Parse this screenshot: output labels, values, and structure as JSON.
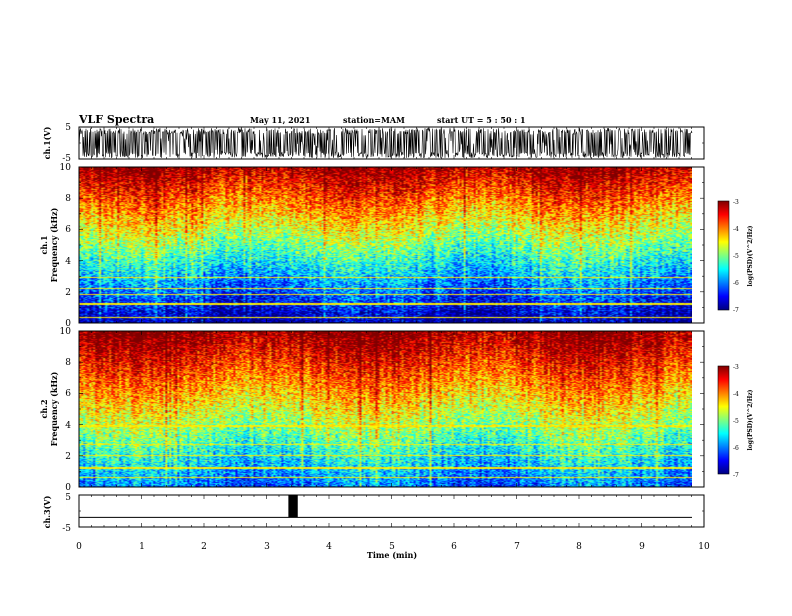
{
  "header": {
    "title": "VLF Spectra",
    "date": "May 11, 2021",
    "station": "station=MAM",
    "start_time": "start  UT =  5 : 50 : 1"
  },
  "chart_data": [
    {
      "name": "ch1-waveform",
      "type": "line",
      "ylabel": "ch.1(V)",
      "ylim": [
        -5,
        5
      ],
      "yticks": [
        "5",
        "-5"
      ],
      "xlim": [
        0,
        10
      ]
    },
    {
      "name": "ch1-spectrogram",
      "type": "heatmap",
      "ylabel_top": "ch.1",
      "ylabel": "Frequency (kHz)",
      "ylim": [
        0,
        10
      ],
      "yticks": [
        "10",
        "8",
        "6",
        "4",
        "2",
        "0"
      ],
      "xlim": [
        0,
        10
      ],
      "colorbar": {
        "label": "log(PSD)(V^2/Hz)",
        "ticks": [
          "-3",
          "-4",
          "-5",
          "-6",
          "-7"
        ],
        "range": [
          -7,
          -3
        ],
        "colormap": "jet"
      }
    },
    {
      "name": "ch2-spectrogram",
      "type": "heatmap",
      "ylabel_top": "ch.2",
      "ylabel": "Frequency (kHz)",
      "ylim": [
        0,
        10
      ],
      "yticks": [
        "10",
        "8",
        "6",
        "4",
        "2",
        "0"
      ],
      "xlim": [
        0,
        10
      ],
      "colorbar": {
        "label": "log(PSD)(V^2/Hz)",
        "ticks": [
          "-3",
          "-4",
          "-5",
          "-6",
          "-7"
        ],
        "range": [
          -7,
          -3
        ],
        "colormap": "jet"
      }
    },
    {
      "name": "ch3-signal",
      "type": "line",
      "ylabel": "ch.3(V)",
      "ylim": [
        -5,
        5
      ],
      "yticks": [
        "5",
        "-5"
      ],
      "xlim": [
        0,
        10
      ],
      "xlabel": "Time (min)",
      "xticks": [
        "0",
        "1",
        "2",
        "3",
        "4",
        "5",
        "6",
        "7",
        "8",
        "9",
        "10"
      ],
      "baseline_v": -2,
      "pulse": {
        "start_min": 3.35,
        "end_min": 3.5,
        "high_v": 5
      }
    }
  ]
}
